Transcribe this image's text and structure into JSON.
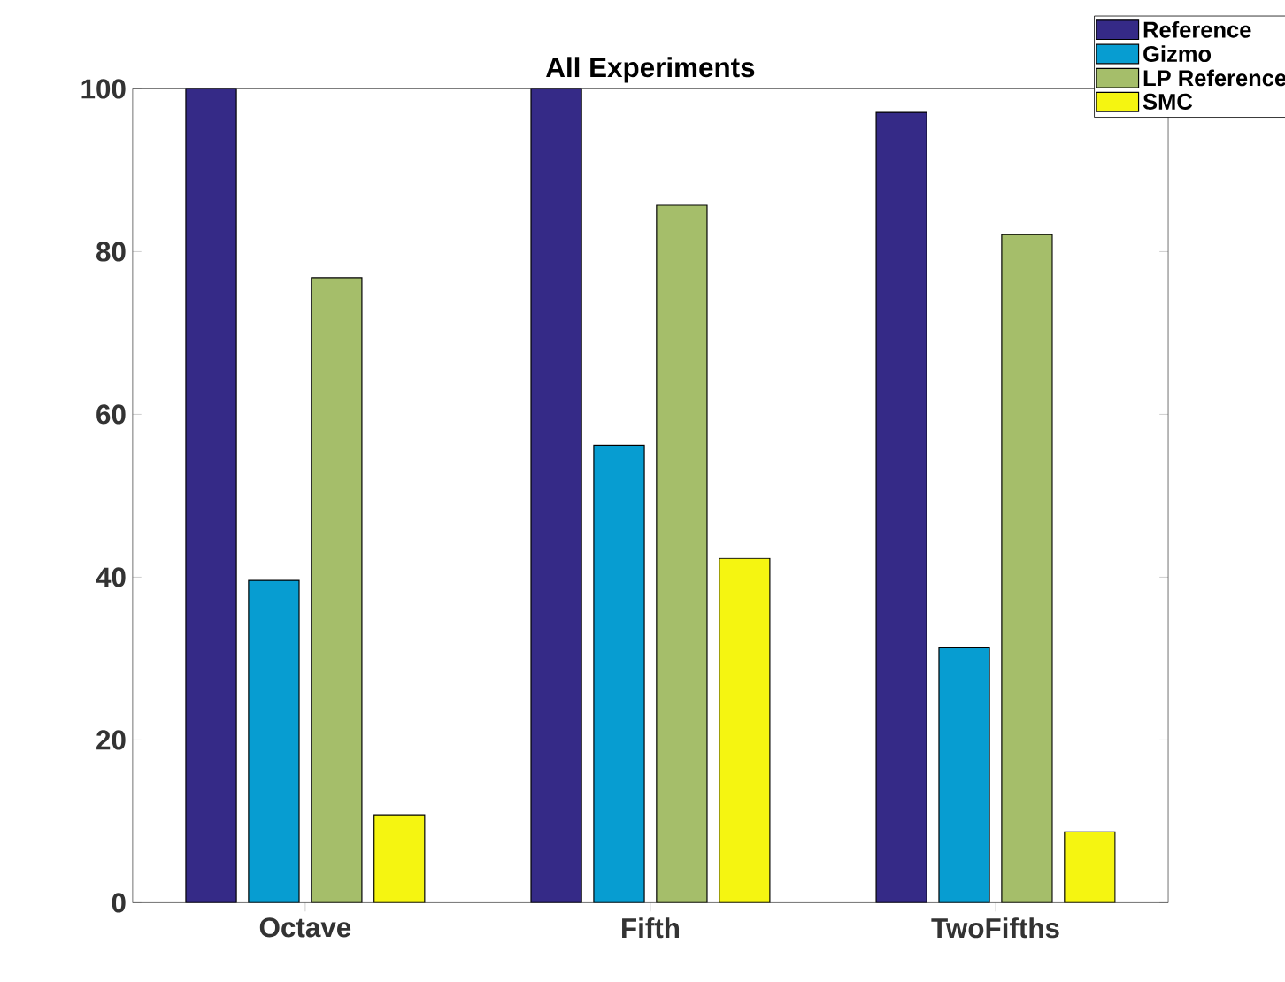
{
  "chart_data": {
    "type": "bar",
    "title": "All Experiments",
    "categories": [
      "Octave",
      "Fifth",
      "TwoFifths"
    ],
    "series": [
      {
        "name": "Reference",
        "color": "#352a87",
        "values": [
          100,
          100,
          97.1
        ]
      },
      {
        "name": "Gizmo",
        "color": "#079dd1",
        "values": [
          39.6,
          56.2,
          31.4
        ]
      },
      {
        "name": "LP Reference",
        "color": "#a5be6a",
        "values": [
          76.8,
          85.7,
          82.1
        ]
      },
      {
        "name": "SMC",
        "color": "#f5f511",
        "values": [
          10.8,
          42.3,
          8.7
        ]
      }
    ],
    "ylim": [
      0,
      100
    ],
    "yticks": [
      0,
      20,
      40,
      60,
      80,
      100
    ],
    "grid": false,
    "legend": "top right"
  }
}
